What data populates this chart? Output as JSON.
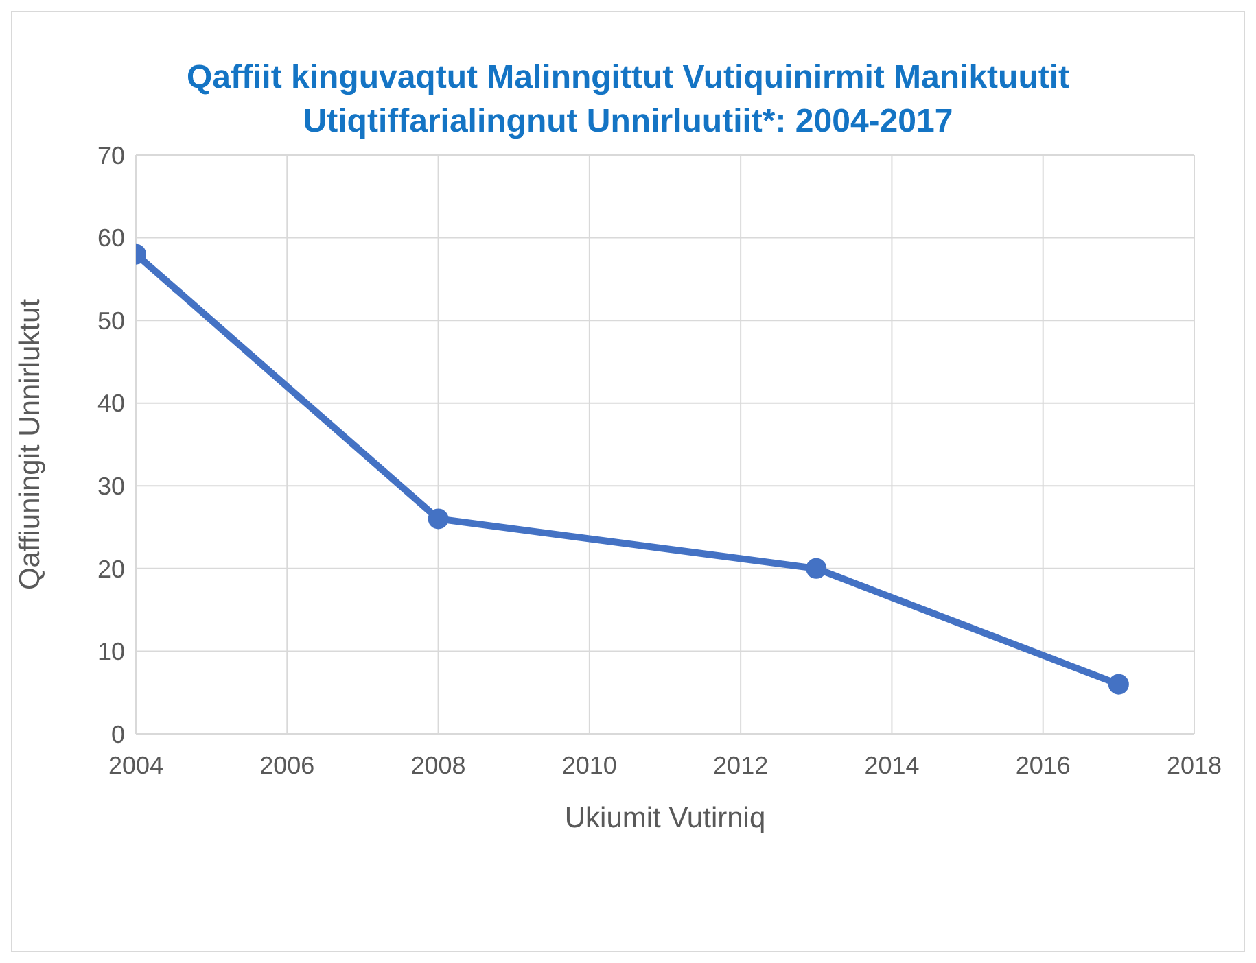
{
  "chart_data": {
    "type": "line",
    "title": "Qaffiit kinguvaqtut Malinngittut Vutiquinirmit Maniktuutit Utiqtiffarialingnut Unnirluutiit*: 2004-2017",
    "xlabel": "Ukiumit Vutirniq",
    "ylabel": "Qaffiuningit Unnirluktut",
    "x": [
      2004,
      2008,
      2013,
      2017
    ],
    "series": [
      {
        "color": "#4472c4",
        "values": [
          58,
          26,
          20,
          6
        ]
      }
    ],
    "xlim": [
      2004,
      2018
    ],
    "xticks": [
      2004,
      2006,
      2008,
      2010,
      2012,
      2014,
      2016,
      2018
    ],
    "ylim": [
      0,
      70
    ],
    "yticks": [
      0,
      10,
      20,
      30,
      40,
      50,
      60,
      70
    ],
    "grid": true,
    "marker": "circle",
    "line_style": "solid",
    "legend": false
  }
}
